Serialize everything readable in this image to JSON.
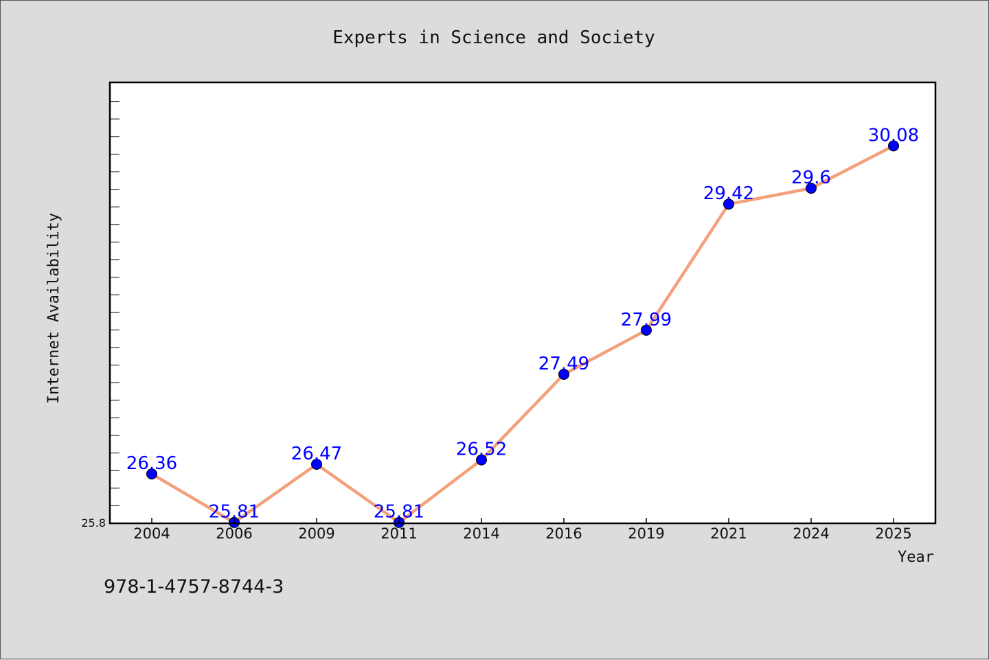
{
  "colors": {
    "background": "#dcdcdc",
    "plot_background": "#ffffff",
    "line": "#f4a07a",
    "marker": "#0000ff",
    "data_label": "#0000ff",
    "axis": "#000000"
  },
  "isbn": "978-1-4757-8744-3",
  "chart_data": {
    "type": "line",
    "title": "Experts in Science and Society",
    "xlabel": "Year",
    "ylabel": "Internet Availability",
    "categories": [
      "2004",
      "2006",
      "2009",
      "2011",
      "2014",
      "2016",
      "2019",
      "2021",
      "2024",
      "2025"
    ],
    "series": [
      {
        "values": [
          26.36,
          25.81,
          26.47,
          25.81,
          26.52,
          27.49,
          27.99,
          29.42,
          29.6,
          30.08
        ]
      }
    ],
    "data_labels": [
      "26.36",
      "25.81",
      "26.47",
      "25.81",
      "26.52",
      "27.49",
      "27.99",
      "29.42",
      "29.6",
      "30.08"
    ],
    "ylim": [
      25.8,
      30.8
    ],
    "yticks": [
      "25.8"
    ],
    "grid": false,
    "legend": "none"
  }
}
